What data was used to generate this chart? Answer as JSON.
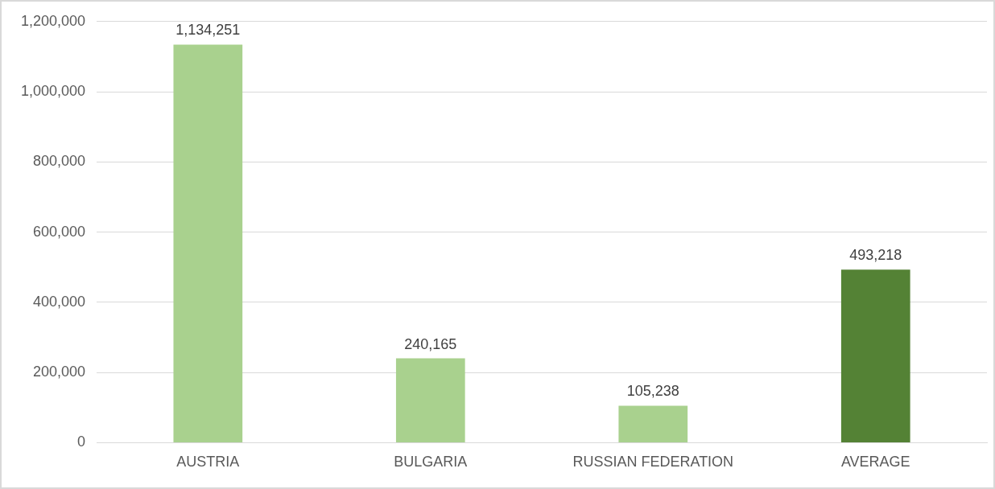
{
  "chart_data": {
    "type": "bar",
    "categories": [
      "AUSTRIA",
      "BULGARIA",
      "RUSSIAN FEDERATION",
      "AVERAGE"
    ],
    "values": [
      1134251,
      240165,
      105238,
      493218
    ],
    "colors": [
      "#a9d18e",
      "#a9d18e",
      "#a9d18e",
      "#548235"
    ],
    "ylim": [
      0,
      1200000
    ],
    "yticks": [
      {
        "value": 0,
        "label": "0"
      },
      {
        "value": 200000,
        "label": "200,000"
      },
      {
        "value": 400000,
        "label": "400,000"
      },
      {
        "value": 600000,
        "label": "600,000"
      },
      {
        "value": 800000,
        "label": "800,000"
      },
      {
        "value": 1000000,
        "label": "1,000,000"
      },
      {
        "value": 1200000,
        "label": "1,200,000"
      }
    ],
    "value_labels": [
      "1,134,251",
      "240,165",
      "105,238",
      "493,218"
    ],
    "grid": "y",
    "legend": false
  }
}
